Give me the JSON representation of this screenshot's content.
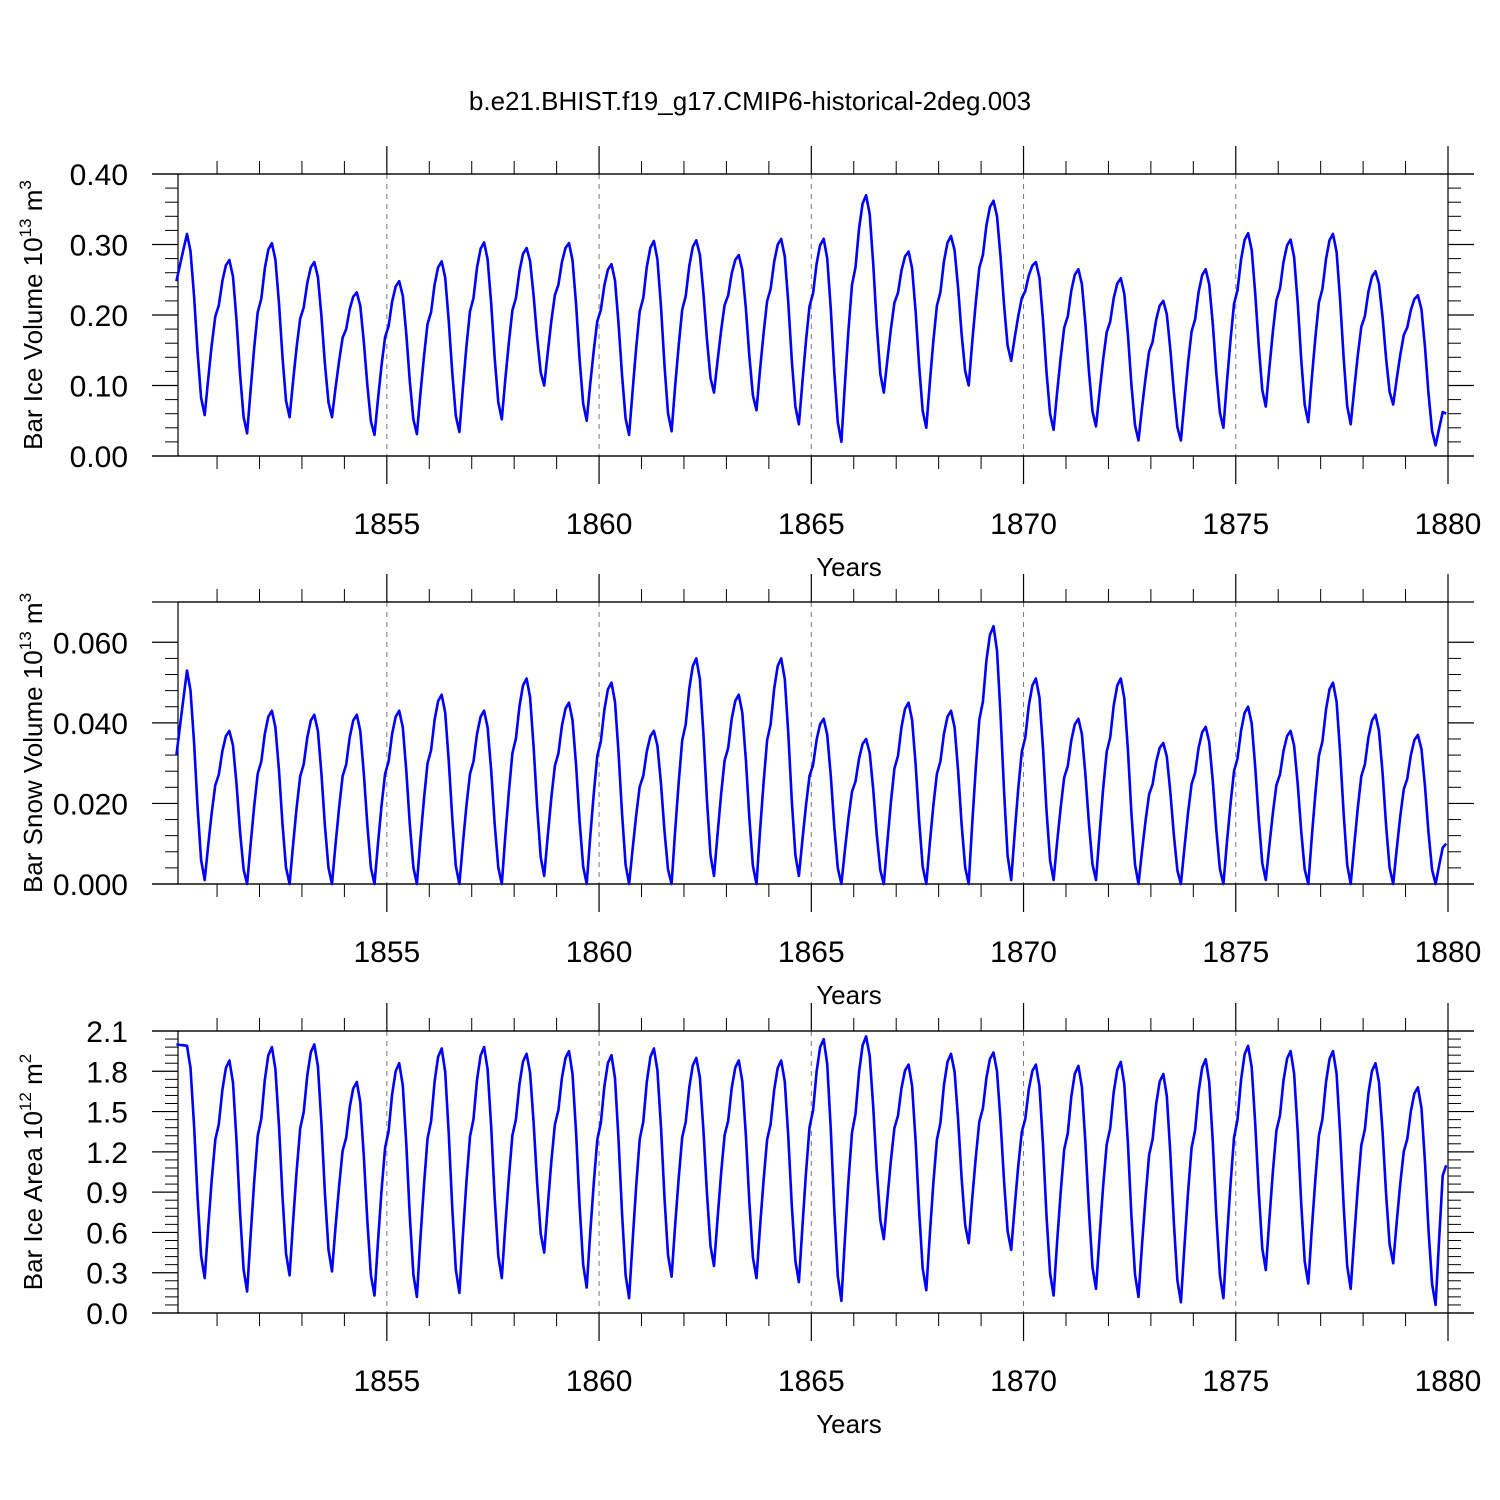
{
  "title": "b.e21.BHIST.f19_g17.CMIP6-historical-2deg.003",
  "series_color": "#0000ff",
  "chart_data": [
    {
      "type": "line",
      "id": "ice-volume",
      "ylabel_main": "Bar Ice Volume 10",
      "ylabel_exp": "13",
      "ylabel_unit": " m",
      "ylabel_unit_exp": "3",
      "xlabel": "Years",
      "xlim": [
        1850.08,
        1880.0
      ],
      "ylim": [
        0.0,
        0.4
      ],
      "yticks": [
        0.0,
        0.1,
        0.2,
        0.3,
        0.4
      ],
      "ytick_labels": [
        "0.00",
        "0.10",
        "0.20",
        "0.30",
        "0.40"
      ],
      "xticks": [
        1855,
        1860,
        1865,
        1870,
        1875,
        1880
      ],
      "xtick_labels": [
        "1855",
        "1860",
        "1865",
        "1870",
        "1875",
        "1880"
      ],
      "series": [
        {
          "name": "Bar Ice Volume",
          "time_start": 1850.0417,
          "time_step": 0.0833333,
          "peaks": [
            0.315,
            0.278,
            0.302,
            0.275,
            0.232,
            0.248,
            0.276,
            0.303,
            0.295,
            0.302,
            0.272,
            0.305,
            0.306,
            0.285,
            0.308,
            0.308,
            0.37,
            0.29,
            0.312,
            0.362,
            0.275,
            0.265,
            0.252,
            0.22,
            0.265,
            0.316,
            0.307,
            0.315,
            0.262,
            0.228
          ],
          "troughs": [
            0.058,
            0.032,
            0.055,
            0.055,
            0.03,
            0.031,
            0.034,
            0.052,
            0.1,
            0.05,
            0.03,
            0.035,
            0.09,
            0.065,
            0.045,
            0.02,
            0.09,
            0.04,
            0.1,
            0.135,
            0.037,
            0.042,
            0.022,
            0.022,
            0.04,
            0.07,
            0.048,
            0.045,
            0.073,
            0.015
          ],
          "start_value": 0.248,
          "end_value": 0.06
        }
      ]
    },
    {
      "type": "line",
      "id": "snow-volume",
      "ylabel_main": "Bar Snow Volume 10",
      "ylabel_exp": "13",
      "ylabel_unit": " m",
      "ylabel_unit_exp": "3",
      "xlabel": "Years",
      "xlim": [
        1850.08,
        1880.0
      ],
      "ylim": [
        0.0,
        0.07
      ],
      "yticks": [
        0.0,
        0.02,
        0.04,
        0.06
      ],
      "ytick_labels": [
        "0.000",
        "0.020",
        "0.040",
        "0.060"
      ],
      "xticks": [
        1855,
        1860,
        1865,
        1870,
        1875,
        1880
      ],
      "xtick_labels": [
        "1855",
        "1860",
        "1865",
        "1870",
        "1875",
        "1880"
      ],
      "series": [
        {
          "name": "Bar Snow Volume",
          "time_start": 1850.0417,
          "time_step": 0.0833333,
          "peaks": [
            0.053,
            0.038,
            0.043,
            0.042,
            0.042,
            0.043,
            0.047,
            0.043,
            0.051,
            0.045,
            0.05,
            0.038,
            0.056,
            0.047,
            0.056,
            0.041,
            0.036,
            0.045,
            0.043,
            0.064,
            0.051,
            0.041,
            0.051,
            0.035,
            0.039,
            0.044,
            0.038,
            0.05,
            0.042,
            0.037
          ],
          "troughs": [
            0.001,
            0.0,
            0.0,
            0.0,
            0.0,
            0.0,
            0.0,
            0.0,
            0.002,
            0.0,
            0.0,
            0.0,
            0.002,
            0.0,
            0.002,
            0.0,
            0.0,
            0.0,
            0.0,
            0.001,
            0.001,
            0.001,
            0.0,
            0.0,
            0.0,
            0.001,
            0.0,
            0.0,
            0.0,
            0.0
          ],
          "start_value": 0.032,
          "end_value": 0.01
        }
      ]
    },
    {
      "type": "line",
      "id": "ice-area",
      "ylabel_main": "Bar Ice Area 10",
      "ylabel_exp": "12",
      "ylabel_unit": " m",
      "ylabel_unit_exp": "2",
      "xlabel": "Years",
      "xlim": [
        1850.08,
        1880.0
      ],
      "ylim": [
        0.0,
        2.1
      ],
      "yticks": [
        0.0,
        0.3,
        0.6,
        0.9,
        1.2,
        1.5,
        1.8,
        2.1
      ],
      "ytick_labels": [
        "0.0",
        "0.3",
        "0.6",
        "0.9",
        "1.2",
        "1.5",
        "1.8",
        "2.1"
      ],
      "xticks": [
        1855,
        1860,
        1865,
        1870,
        1875,
        1880
      ],
      "xtick_labels": [
        "1855",
        "1860",
        "1865",
        "1870",
        "1875",
        "1880"
      ],
      "series": [
        {
          "name": "Bar Ice Area",
          "time_start": 1850.0417,
          "time_step": 0.0833333,
          "peaks": [
            1.99,
            1.88,
            1.98,
            2.0,
            1.72,
            1.86,
            1.97,
            1.98,
            1.93,
            1.95,
            1.92,
            1.97,
            1.9,
            1.88,
            1.88,
            2.04,
            2.06,
            1.85,
            1.93,
            1.94,
            1.85,
            1.84,
            1.87,
            1.78,
            1.89,
            1.99,
            1.95,
            1.95,
            1.86,
            1.68
          ],
          "troughs": [
            0.26,
            0.16,
            0.28,
            0.31,
            0.13,
            0.12,
            0.15,
            0.26,
            0.45,
            0.19,
            0.11,
            0.27,
            0.35,
            0.26,
            0.23,
            0.09,
            0.55,
            0.17,
            0.52,
            0.47,
            0.13,
            0.18,
            0.12,
            0.08,
            0.11,
            0.32,
            0.22,
            0.18,
            0.37,
            0.06
          ],
          "start_value": 2.0,
          "end_value": 1.1
        }
      ]
    }
  ]
}
